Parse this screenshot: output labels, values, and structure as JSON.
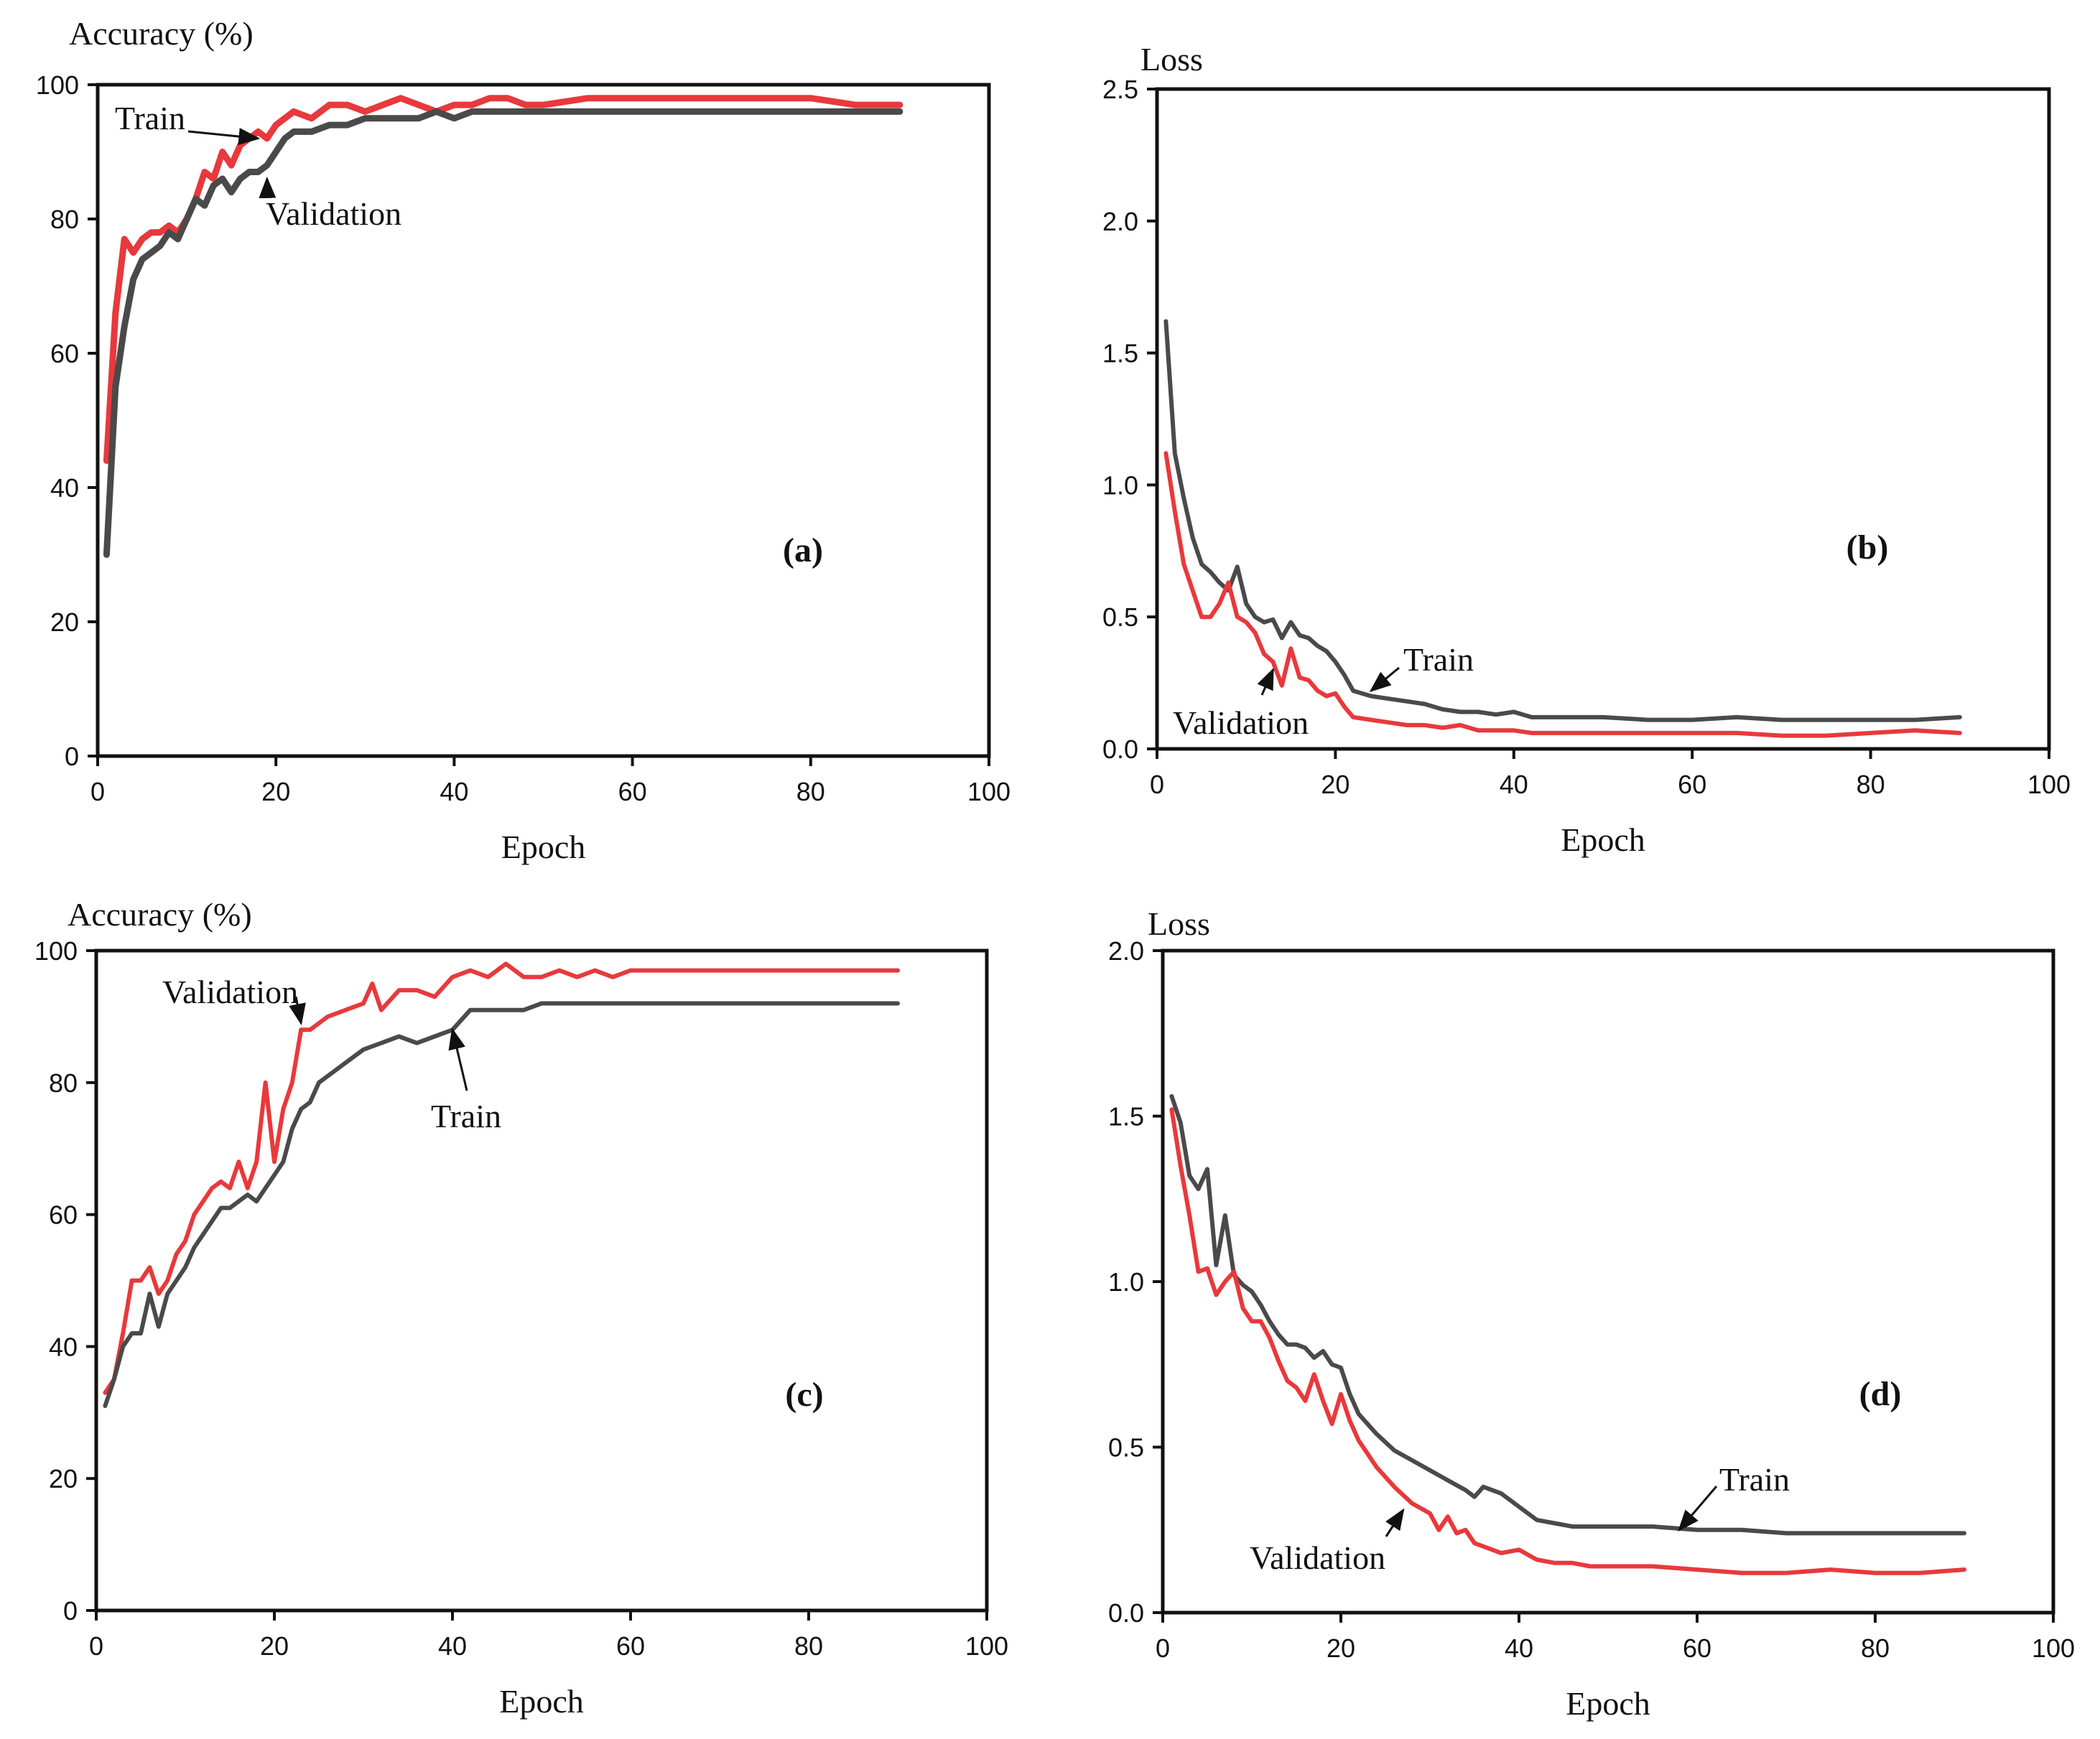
{
  "colors": {
    "train": "#4a4a4a",
    "validation": "#e8393c",
    "axes": "#111111"
  },
  "chart_data": [
    {
      "type": "line",
      "panel_label": "(a)",
      "ylabel": "Accuracy (%)",
      "xlabel": "Epoch",
      "xlim": [
        0,
        100
      ],
      "ylim": [
        0,
        100
      ],
      "xticks": [
        0,
        20,
        40,
        60,
        80,
        100
      ],
      "yticks": [
        0,
        20,
        40,
        60,
        80,
        100
      ],
      "ytick_labels": [
        "0",
        "20",
        "40",
        "60",
        "80",
        "100"
      ],
      "series": [
        {
          "name": "Train",
          "color": "#e8393c",
          "x": [
            1,
            2,
            3,
            4,
            5,
            6,
            7,
            8,
            9,
            10,
            11,
            12,
            13,
            14,
            15,
            16,
            17,
            18,
            19,
            20,
            22,
            24,
            26,
            28,
            30,
            32,
            34,
            36,
            38,
            40,
            42,
            44,
            46,
            48,
            50,
            55,
            60,
            65,
            70,
            75,
            80,
            85,
            88,
            90
          ],
          "y": [
            44,
            66,
            77,
            75,
            77,
            78,
            78,
            79,
            78,
            80,
            83,
            87,
            86,
            90,
            88,
            91,
            92,
            93,
            92,
            94,
            96,
            95,
            97,
            97,
            96,
            97,
            98,
            97,
            96,
            97,
            97,
            98,
            98,
            97,
            97,
            98,
            98,
            98,
            98,
            98,
            98,
            97,
            97,
            97
          ]
        },
        {
          "name": "Validation",
          "color": "#4a4a4a",
          "x": [
            1,
            2,
            3,
            4,
            5,
            6,
            7,
            8,
            9,
            10,
            11,
            12,
            13,
            14,
            15,
            16,
            17,
            18,
            19,
            20,
            21,
            22,
            24,
            26,
            28,
            30,
            32,
            34,
            36,
            38,
            40,
            42,
            44,
            46,
            48,
            50,
            55,
            60,
            65,
            70,
            75,
            80,
            85,
            90
          ],
          "y": [
            30,
            55,
            64,
            71,
            74,
            75,
            76,
            78,
            77,
            80,
            83,
            82,
            85,
            86,
            84,
            86,
            87,
            87,
            88,
            90,
            92,
            93,
            93,
            94,
            94,
            95,
            95,
            95,
            95,
            96,
            95,
            96,
            96,
            96,
            96,
            96,
            96,
            96,
            96,
            96,
            96,
            96,
            96,
            96
          ]
        }
      ],
      "annotations": [
        {
          "text": "Train",
          "points_to": "Train",
          "at_x": 18,
          "at_y": 92
        },
        {
          "text": "Validation",
          "points_to": "Validation",
          "at_x": 19,
          "at_y": 86
        }
      ]
    },
    {
      "type": "line",
      "panel_label": "(b)",
      "ylabel": "Loss",
      "xlabel": "Epoch",
      "xlim": [
        0,
        100
      ],
      "ylim": [
        0,
        2.5
      ],
      "xticks": [
        0,
        20,
        40,
        60,
        80,
        100
      ],
      "yticks": [
        0,
        0.5,
        1.0,
        1.5,
        2.0,
        2.5
      ],
      "ytick_labels": [
        "0.0",
        "0.5",
        "1.0",
        "1.5",
        "2.0",
        "2.5"
      ],
      "series": [
        {
          "name": "Train",
          "color": "#4a4a4a",
          "x": [
            1,
            2,
            3,
            4,
            5,
            6,
            7,
            8,
            9,
            10,
            11,
            12,
            13,
            14,
            15,
            16,
            17,
            18,
            19,
            20,
            21,
            22,
            24,
            26,
            28,
            30,
            32,
            34,
            36,
            38,
            40,
            42,
            45,
            50,
            55,
            60,
            65,
            70,
            75,
            80,
            85,
            90
          ],
          "y": [
            1.62,
            1.12,
            0.95,
            0.8,
            0.7,
            0.67,
            0.63,
            0.6,
            0.69,
            0.55,
            0.5,
            0.48,
            0.49,
            0.42,
            0.48,
            0.43,
            0.42,
            0.39,
            0.37,
            0.33,
            0.28,
            0.22,
            0.2,
            0.19,
            0.18,
            0.17,
            0.15,
            0.14,
            0.14,
            0.13,
            0.14,
            0.12,
            0.12,
            0.12,
            0.11,
            0.11,
            0.12,
            0.11,
            0.11,
            0.11,
            0.11,
            0.12
          ]
        },
        {
          "name": "Validation",
          "color": "#e8393c",
          "x": [
            1,
            2,
            3,
            4,
            5,
            6,
            7,
            8,
            9,
            10,
            11,
            12,
            13,
            14,
            15,
            16,
            17,
            18,
            19,
            20,
            21,
            22,
            24,
            26,
            28,
            30,
            32,
            34,
            36,
            38,
            40,
            42,
            45,
            50,
            55,
            60,
            65,
            70,
            75,
            80,
            85,
            90
          ],
          "y": [
            1.12,
            0.9,
            0.7,
            0.6,
            0.5,
            0.5,
            0.55,
            0.63,
            0.5,
            0.48,
            0.44,
            0.36,
            0.33,
            0.24,
            0.38,
            0.27,
            0.26,
            0.22,
            0.2,
            0.21,
            0.16,
            0.12,
            0.11,
            0.1,
            0.09,
            0.09,
            0.08,
            0.09,
            0.07,
            0.07,
            0.07,
            0.06,
            0.06,
            0.06,
            0.06,
            0.06,
            0.06,
            0.05,
            0.05,
            0.06,
            0.07,
            0.06
          ]
        }
      ],
      "annotations": [
        {
          "text": "Train",
          "points_to": "Train",
          "at_x": 24,
          "at_y": 0.22
        },
        {
          "text": "Validation",
          "points_to": "Validation",
          "at_x": 13,
          "at_y": 0.3
        }
      ]
    },
    {
      "type": "line",
      "panel_label": "(c)",
      "ylabel": "Accuracy (%)",
      "xlabel": "Epoch",
      "xlim": [
        0,
        100
      ],
      "ylim": [
        0,
        100
      ],
      "xticks": [
        0,
        20,
        40,
        60,
        80,
        100
      ],
      "yticks": [
        0,
        20,
        40,
        60,
        80,
        100
      ],
      "ytick_labels": [
        "0",
        "20",
        "40",
        "60",
        "80",
        "100"
      ],
      "series": [
        {
          "name": "Validation",
          "color": "#e8393c",
          "x": [
            1,
            2,
            3,
            4,
            5,
            6,
            7,
            8,
            9,
            10,
            11,
            12,
            13,
            14,
            15,
            16,
            17,
            18,
            19,
            20,
            21,
            22,
            23,
            24,
            25,
            26,
            28,
            30,
            31,
            32,
            34,
            36,
            38,
            40,
            42,
            44,
            46,
            48,
            50,
            52,
            54,
            56,
            58,
            60,
            65,
            70,
            75,
            80,
            85,
            90
          ],
          "y": [
            33,
            35,
            42,
            50,
            50,
            52,
            48,
            50,
            54,
            56,
            60,
            62,
            64,
            65,
            64,
            68,
            64,
            68,
            80,
            68,
            76,
            80,
            88,
            88,
            89,
            90,
            91,
            92,
            95,
            91,
            94,
            94,
            93,
            96,
            97,
            96,
            98,
            96,
            96,
            97,
            96,
            97,
            96,
            97,
            97,
            97,
            97,
            97,
            97,
            97
          ]
        },
        {
          "name": "Train",
          "color": "#4a4a4a",
          "x": [
            1,
            2,
            3,
            4,
            5,
            6,
            7,
            8,
            9,
            10,
            11,
            12,
            13,
            14,
            15,
            16,
            17,
            18,
            19,
            20,
            21,
            22,
            23,
            24,
            25,
            26,
            28,
            30,
            32,
            34,
            36,
            38,
            40,
            42,
            44,
            46,
            48,
            50,
            55,
            60,
            65,
            70,
            75,
            80,
            85,
            90
          ],
          "y": [
            31,
            35,
            40,
            42,
            42,
            48,
            43,
            48,
            50,
            52,
            55,
            57,
            59,
            61,
            61,
            62,
            63,
            62,
            64,
            66,
            68,
            73,
            76,
            77,
            80,
            81,
            83,
            85,
            86,
            87,
            86,
            87,
            88,
            91,
            91,
            91,
            91,
            92,
            92,
            92,
            92,
            92,
            92,
            92,
            92,
            92
          ]
        }
      ],
      "annotations": [
        {
          "text": "Validation",
          "points_to": "Validation",
          "at_x": 23,
          "at_y": 89
        },
        {
          "text": "Train",
          "points_to": "Train",
          "at_x": 40,
          "at_y": 88
        }
      ]
    },
    {
      "type": "line",
      "panel_label": "(d)",
      "ylabel": "Loss",
      "xlabel": "Epoch",
      "xlim": [
        0,
        100
      ],
      "ylim": [
        0,
        2.0
      ],
      "xticks": [
        0,
        20,
        40,
        60,
        80,
        100
      ],
      "yticks": [
        0,
        0.5,
        1.0,
        1.5,
        2.0
      ],
      "ytick_labels": [
        "0.0",
        "0.5",
        "1.0",
        "1.5",
        "2.0"
      ],
      "series": [
        {
          "name": "Train",
          "color": "#4a4a4a",
          "x": [
            1,
            2,
            3,
            4,
            5,
            6,
            7,
            8,
            9,
            10,
            11,
            12,
            13,
            14,
            15,
            16,
            17,
            18,
            19,
            20,
            21,
            22,
            24,
            26,
            28,
            30,
            32,
            34,
            35,
            36,
            38,
            40,
            42,
            44,
            46,
            48,
            50,
            55,
            60,
            65,
            70,
            75,
            80,
            85,
            90
          ],
          "y": [
            1.56,
            1.48,
            1.32,
            1.28,
            1.34,
            1.05,
            1.2,
            1.02,
            0.99,
            0.97,
            0.93,
            0.88,
            0.84,
            0.81,
            0.81,
            0.8,
            0.77,
            0.79,
            0.75,
            0.74,
            0.66,
            0.6,
            0.54,
            0.49,
            0.46,
            0.43,
            0.4,
            0.37,
            0.35,
            0.38,
            0.36,
            0.32,
            0.28,
            0.27,
            0.26,
            0.26,
            0.26,
            0.26,
            0.25,
            0.25,
            0.24,
            0.24,
            0.24,
            0.24,
            0.24
          ]
        },
        {
          "name": "Validation",
          "color": "#e8393c",
          "x": [
            1,
            2,
            3,
            4,
            5,
            6,
            7,
            8,
            9,
            10,
            11,
            12,
            13,
            14,
            15,
            16,
            17,
            18,
            19,
            20,
            21,
            22,
            24,
            26,
            28,
            30,
            31,
            32,
            33,
            34,
            35,
            36,
            38,
            40,
            42,
            44,
            46,
            48,
            50,
            55,
            60,
            65,
            70,
            75,
            80,
            85,
            90
          ],
          "y": [
            1.52,
            1.35,
            1.2,
            1.03,
            1.04,
            0.96,
            1.0,
            1.03,
            0.92,
            0.88,
            0.88,
            0.83,
            0.76,
            0.7,
            0.68,
            0.64,
            0.72,
            0.64,
            0.57,
            0.66,
            0.58,
            0.52,
            0.44,
            0.38,
            0.33,
            0.3,
            0.25,
            0.29,
            0.24,
            0.25,
            0.21,
            0.2,
            0.18,
            0.19,
            0.16,
            0.15,
            0.15,
            0.14,
            0.14,
            0.14,
            0.13,
            0.12,
            0.12,
            0.13,
            0.12,
            0.12,
            0.13
          ]
        }
      ],
      "annotations": [
        {
          "text": "Train",
          "points_to": "Train",
          "at_x": 58,
          "at_y": 0.25
        },
        {
          "text": "Validation",
          "points_to": "Validation",
          "at_x": 27,
          "at_y": 0.31
        }
      ]
    }
  ]
}
